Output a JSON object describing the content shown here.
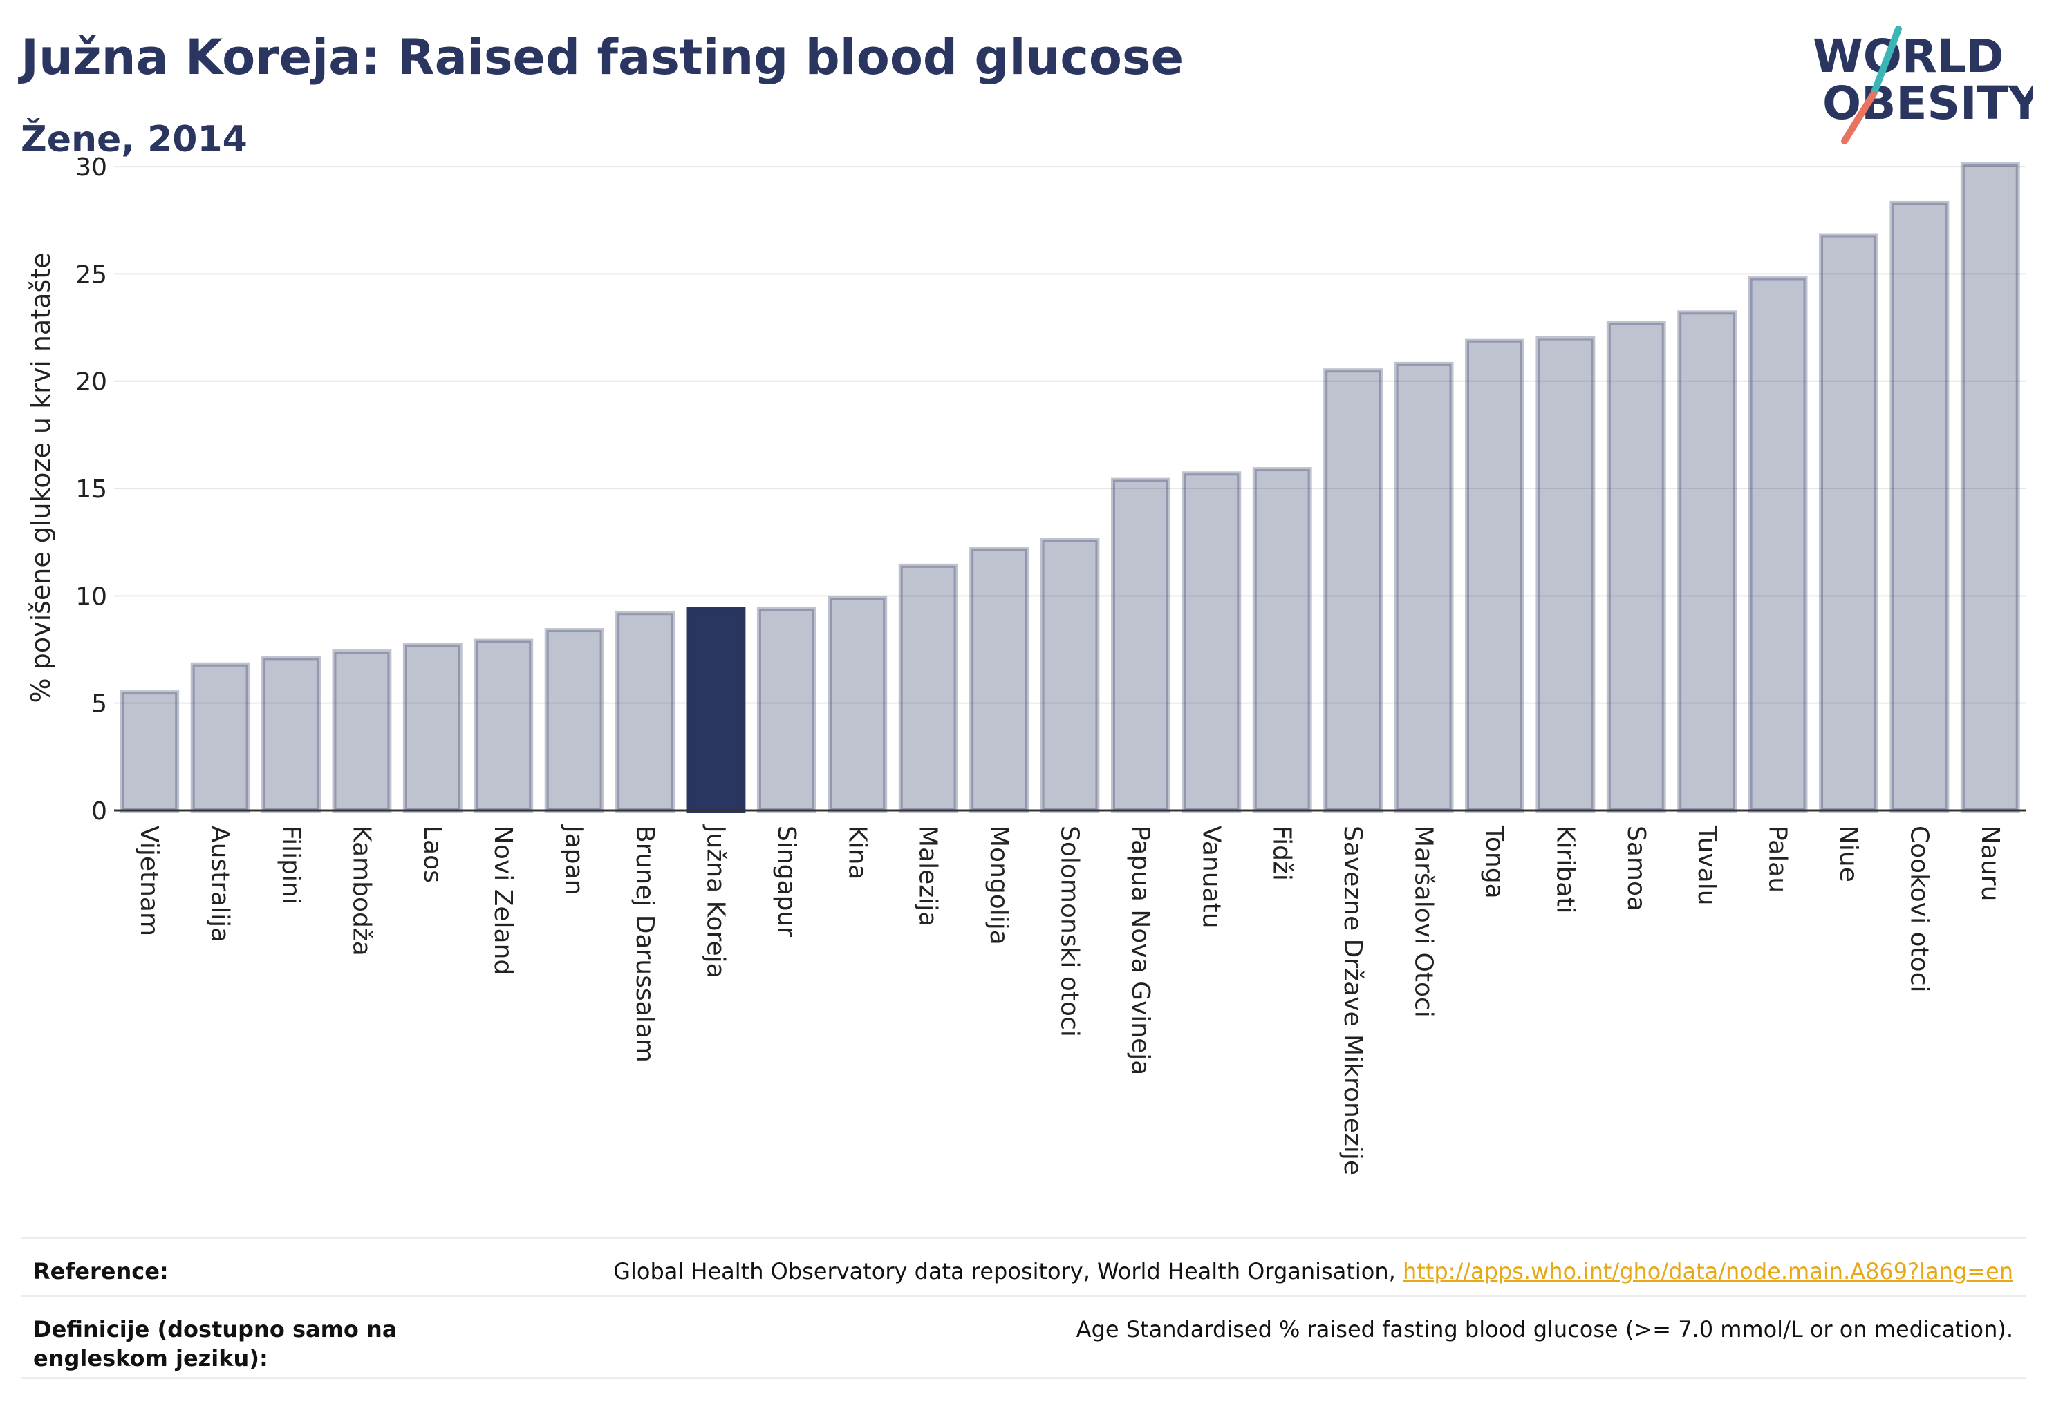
{
  "header": {
    "title": "Južna Koreja: Raised fasting blood glucose",
    "subtitle": "Žene, 2014"
  },
  "logo": {
    "line1": "WORLD",
    "line2": "OBESITY"
  },
  "chart_data": {
    "type": "bar",
    "ylabel": "% povišene glukoze u krvi natašte",
    "ylim": [
      0,
      30
    ],
    "yticks": [
      0,
      5,
      10,
      15,
      20,
      25,
      30
    ],
    "grid": true,
    "highlight": "Južna Koreja",
    "colors": {
      "bar": "#2a3560",
      "bar_alpha": 0.3,
      "highlight": "#2a3560"
    },
    "categories": [
      "Vijetnam",
      "Australija",
      "Filipini",
      "Kambodža",
      "Laos",
      "Novi Zeland",
      "Japan",
      "Brunej Darussalam",
      "Južna Koreja",
      "Singapur",
      "Kina",
      "Malezija",
      "Mongolija",
      "Solomonski otoci",
      "Papua Nova Gvineja",
      "Vanuatu",
      "Fidži",
      "Savezne Države Mikronezije",
      "Maršalovi Otoci",
      "Tonga",
      "Kiribati",
      "Samoa",
      "Tuvalu",
      "Palau",
      "Niue",
      "Cookovi otoci",
      "Nauru"
    ],
    "values": [
      5.5,
      6.8,
      7.1,
      7.4,
      7.7,
      7.9,
      8.4,
      9.2,
      9.4,
      9.4,
      9.9,
      11.4,
      12.2,
      12.6,
      15.4,
      15.7,
      15.9,
      20.5,
      20.8,
      21.9,
      22.0,
      22.7,
      23.2,
      24.8,
      26.8,
      28.3,
      30.1
    ]
  },
  "footer": {
    "reference_label": "Reference:",
    "reference_text": "Global Health Observatory data repository, World Health Organisation, ",
    "reference_link": "http://apps.who.int/gho/data/node.main.A869?lang=en",
    "definition_label": "Definicije (dostupno samo na engleskom jeziku):",
    "definition_text": "Age Standardised % raised fasting blood glucose (>= 7.0 mmol/L or on medication)."
  }
}
